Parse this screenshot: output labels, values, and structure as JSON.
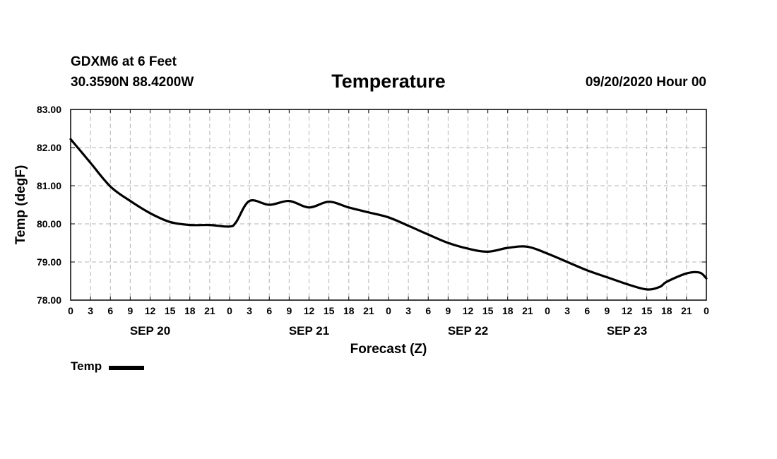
{
  "header": {
    "station": "GDXM6 at 6 Feet",
    "coords": "30.3590N 88.4200W",
    "run": "09/20/2020 Hour 00"
  },
  "chart_data": {
    "type": "line",
    "title": "Temperature",
    "xlabel": "Forecast (Z)",
    "ylabel": "Temp (degF)",
    "xlim": [
      0,
      96
    ],
    "ylim": [
      78,
      83
    ],
    "y_ticks": [
      78,
      79,
      80,
      81,
      82,
      83
    ],
    "y_tick_labels": [
      "78.00",
      "79.00",
      "80.00",
      "81.00",
      "82.00",
      "83.00"
    ],
    "x_ticks": [
      0,
      3,
      6,
      9,
      12,
      15,
      18,
      21,
      24,
      27,
      30,
      33,
      36,
      39,
      42,
      45,
      48,
      51,
      54,
      57,
      60,
      63,
      66,
      69,
      72,
      75,
      78,
      81,
      84,
      87,
      90,
      93,
      96
    ],
    "x_tick_labels": [
      "0",
      "3",
      "6",
      "9",
      "12",
      "15",
      "18",
      "21",
      "0",
      "3",
      "6",
      "9",
      "12",
      "15",
      "18",
      "21",
      "0",
      "3",
      "6",
      "9",
      "12",
      "15",
      "18",
      "21",
      "0",
      "3",
      "6",
      "9",
      "12",
      "15",
      "18",
      "21",
      "0"
    ],
    "date_labels": [
      {
        "label": "SEP 20",
        "hour": 12
      },
      {
        "label": "SEP 21",
        "hour": 36
      },
      {
        "label": "SEP 22",
        "hour": 60
      },
      {
        "label": "SEP 23",
        "hour": 84
      }
    ],
    "grid": true,
    "series": [
      {
        "name": "Temp",
        "color": "#000000",
        "x": [
          0,
          3,
          6,
          9,
          12,
          15,
          18,
          21,
          24,
          25,
          27,
          30,
          33,
          36,
          39,
          42,
          45,
          48,
          51,
          54,
          57,
          60,
          63,
          66,
          69,
          72,
          75,
          78,
          81,
          84,
          87,
          89,
          90,
          93,
          95,
          96
        ],
        "y": [
          82.22,
          81.6,
          80.98,
          80.6,
          80.28,
          80.05,
          79.97,
          79.97,
          79.93,
          80.05,
          80.6,
          80.5,
          80.6,
          80.43,
          80.58,
          80.43,
          80.3,
          80.17,
          79.95,
          79.72,
          79.5,
          79.35,
          79.27,
          79.37,
          79.4,
          79.22,
          79.0,
          78.78,
          78.6,
          78.42,
          78.28,
          78.35,
          78.48,
          78.7,
          78.72,
          78.57
        ]
      }
    ],
    "legend": [
      {
        "label": "Temp",
        "color": "#000000"
      }
    ],
    "legend_position": "bottom-left"
  }
}
